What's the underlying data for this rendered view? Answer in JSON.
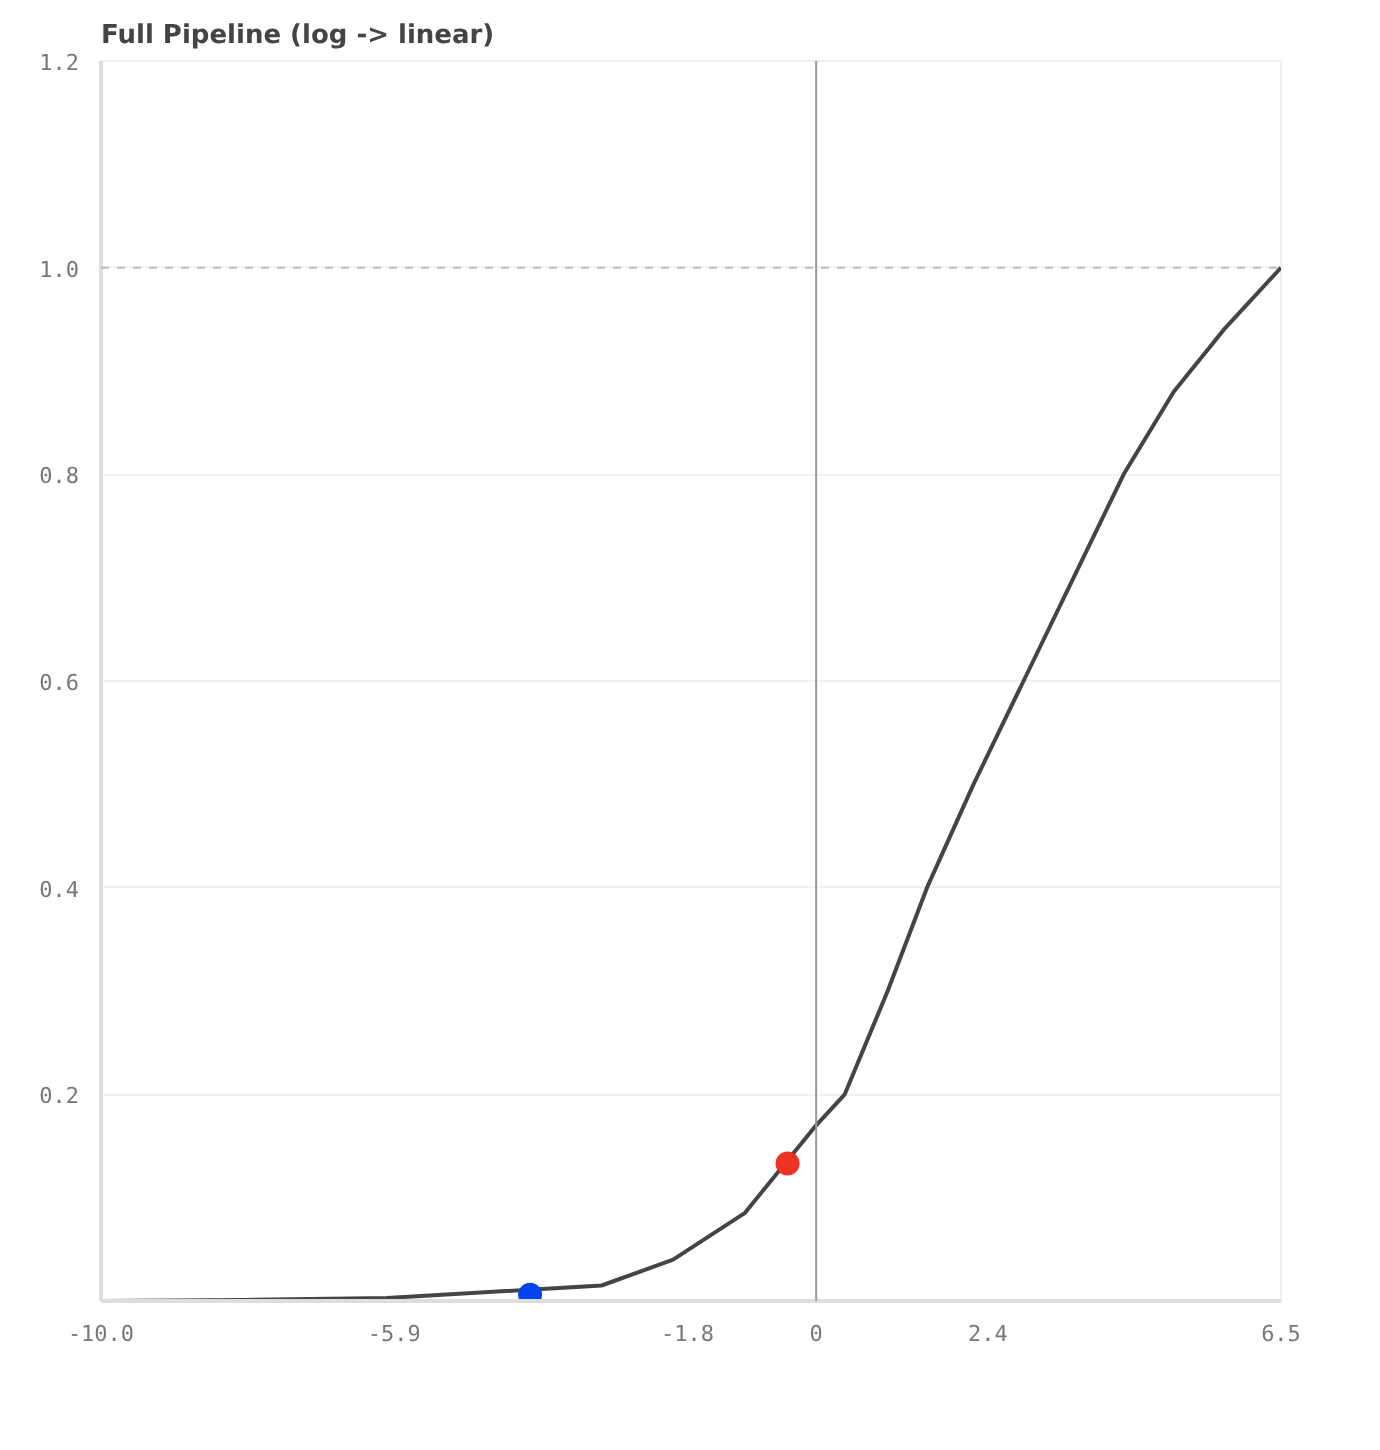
{
  "chart_data": {
    "type": "line",
    "title": "Full Pipeline (log -> linear)",
    "xlim": [
      -10,
      6.5
    ],
    "ylim": [
      0,
      1.2
    ],
    "xticks": [
      {
        "value": -10,
        "label": "-10.0"
      },
      -5.9,
      -1.8,
      0,
      2.4,
      6.5
    ],
    "yticks": [
      0.2,
      0.4,
      0.6,
      0.8,
      {
        "value": 1,
        "label": "1.0"
      },
      1.2
    ],
    "grid": "y",
    "line_style": "solid",
    "ref_lines": [
      {
        "axis": "y",
        "value": 1,
        "color": "#bbbbbb",
        "line_style": "dashed"
      },
      {
        "axis": "x",
        "value": 0,
        "color": "#999999",
        "line_style": "solid"
      }
    ],
    "series": [
      {
        "color": "#444444",
        "marker": "none",
        "x": [
          -10,
          -8,
          -6,
          -3,
          -2,
          -1,
          0,
          0.4,
          1,
          1.55,
          2.2,
          2.9,
          3.6,
          4.3,
          5,
          5.7,
          6.5
        ],
        "values": [
          0,
          0.001,
          0.003,
          0.015,
          0.04,
          0.085,
          0.17,
          0.2,
          0.3,
          0.4,
          0.5,
          0.6,
          0.7,
          0.8,
          0.88,
          0.94,
          1.0
        ]
      },
      {
        "type": "scatter",
        "color": "#0044ee",
        "marker": "circle",
        "x": [
          -4
        ],
        "values": [
          0.006
        ]
      },
      {
        "type": "scatter",
        "color": "#ee3322",
        "marker": "circle",
        "x": [
          -0.4
        ],
        "values": [
          0.133
        ]
      }
    ]
  }
}
